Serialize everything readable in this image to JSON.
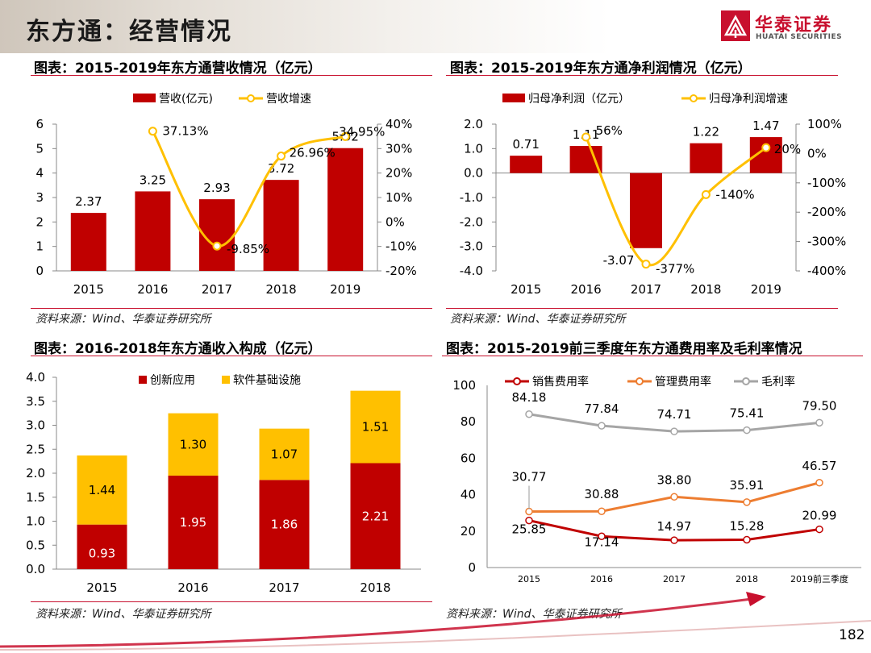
{
  "page": {
    "title": "东方通：经营情况",
    "page_number": "182"
  },
  "logo": {
    "cn": "华泰证券",
    "en": "HUATAI SECURITIES"
  },
  "panels": {
    "p1": {
      "title": "图表：2015-2019年东方通营收情况（亿元）",
      "source": "资料来源：Wind、华泰证券研究所"
    },
    "p2": {
      "title": "图表：2015-2019年东方通净利润情况（亿元）",
      "source": "资料来源：Wind、华泰证券研究所"
    },
    "p3": {
      "title": "图表：2016-2018年东方通收入构成（亿元）",
      "source": "资料来源：Wind、华泰证券研究所"
    },
    "p4": {
      "title": "图表：2015-2019前三季度年东方通费用率及毛利率情况",
      "source": "资料来源：Wind、华泰证券研究所"
    }
  },
  "colors": {
    "red": "#c00000",
    "yellow": "#ffc000",
    "orange": "#ed7d31",
    "gray": "#a5a5a5",
    "brand": "#c8102e"
  },
  "chart_data": [
    {
      "id": "revenue",
      "type": "bar+line",
      "title": "2015-2019年东方通营收情况（亿元）",
      "categories": [
        "2015",
        "2016",
        "2017",
        "2018",
        "2019"
      ],
      "series": [
        {
          "name": "营收(亿元)",
          "type": "bar",
          "axis": "left",
          "values": [
            2.37,
            3.25,
            2.93,
            3.72,
            5.02
          ],
          "labels": [
            "2.37",
            "3.25",
            "2.93",
            "3.72",
            "5.02"
          ]
        },
        {
          "name": "营收增速",
          "type": "line",
          "axis": "right",
          "values": [
            null,
            37.13,
            -9.85,
            26.96,
            34.95
          ],
          "labels": [
            "",
            "37.13%",
            "-9.85%",
            "26.96%",
            "34.95%"
          ]
        }
      ],
      "left_axis": {
        "min": 0,
        "max": 6,
        "ticks": [
          "0",
          "1",
          "2",
          "3",
          "4",
          "5",
          "6"
        ]
      },
      "right_axis": {
        "min": -20,
        "max": 40,
        "ticks": [
          "-20%",
          "-10%",
          "0%",
          "10%",
          "20%",
          "30%",
          "40%"
        ]
      },
      "legend": "top-center"
    },
    {
      "id": "net_profit",
      "type": "bar+line",
      "title": "2015-2019年东方通净利润情况（亿元）",
      "categories": [
        "2015",
        "2016",
        "2017",
        "2018",
        "2019"
      ],
      "series": [
        {
          "name": "归母净利润（亿元）",
          "type": "bar",
          "axis": "left",
          "values": [
            0.71,
            1.11,
            -3.07,
            1.22,
            1.47
          ],
          "labels": [
            "0.71",
            "1.11",
            "-3.07",
            "1.22",
            "1.47"
          ]
        },
        {
          "name": "归母净利润增速",
          "type": "line",
          "axis": "right",
          "values": [
            null,
            56,
            -377,
            -140,
            20
          ],
          "labels": [
            "",
            "56%",
            "-377%",
            "-140%",
            "20%"
          ]
        }
      ],
      "left_axis": {
        "min": -4,
        "max": 2,
        "ticks": [
          "-4.0",
          "-3.0",
          "-2.0",
          "-1.0",
          "0.0",
          "1.0",
          "2.0"
        ]
      },
      "right_axis": {
        "min": -400,
        "max": 100,
        "ticks": [
          "-400%",
          "-300%",
          "-200%",
          "-100%",
          "0%",
          "100%"
        ]
      },
      "legend": "top-center"
    },
    {
      "id": "revenue_mix",
      "type": "stacked-bar",
      "title": "2016-2018年东方通收入构成（亿元）",
      "categories": [
        "2015",
        "2016",
        "2017",
        "2018"
      ],
      "series": [
        {
          "name": "创新应用",
          "values": [
            0.93,
            1.95,
            1.86,
            2.21
          ],
          "labels": [
            "0.93",
            "1.95",
            "1.86",
            "2.21"
          ]
        },
        {
          "name": "软件基础设施",
          "values": [
            1.44,
            1.3,
            1.07,
            1.51
          ],
          "labels": [
            "1.44",
            "1.30",
            "1.07",
            "1.51"
          ]
        }
      ],
      "y_axis": {
        "min": 0,
        "max": 4,
        "ticks": [
          "0.0",
          "0.5",
          "1.0",
          "1.5",
          "2.0",
          "2.5",
          "3.0",
          "3.5",
          "4.0"
        ]
      },
      "legend": "top"
    },
    {
      "id": "expense_ratios",
      "type": "line",
      "title": "2015-2019前三季度年东方通费用率及毛利率情况",
      "categories": [
        "2015",
        "2016",
        "2017",
        "2018",
        "2019前三季度"
      ],
      "series": [
        {
          "name": "销售费用率",
          "values": [
            25.85,
            17.14,
            14.97,
            15.28,
            20.99
          ],
          "labels": [
            "25.85",
            "17.14",
            "14.97",
            "15.28",
            "20.99"
          ]
        },
        {
          "name": "管理费用率",
          "values": [
            30.77,
            30.88,
            38.8,
            35.91,
            46.57
          ],
          "labels": [
            "30.77",
            "30.88",
            "38.80",
            "35.91",
            "46.57"
          ]
        },
        {
          "name": "毛利率",
          "values": [
            84.18,
            77.84,
            74.71,
            75.41,
            79.5
          ],
          "labels": [
            "84.18",
            "77.84",
            "74.71",
            "75.41",
            "79.50"
          ]
        }
      ],
      "y_axis": {
        "min": 0,
        "max": 100,
        "ticks": [
          "0",
          "20",
          "40",
          "60",
          "80",
          "100"
        ]
      },
      "legend": "top"
    }
  ]
}
